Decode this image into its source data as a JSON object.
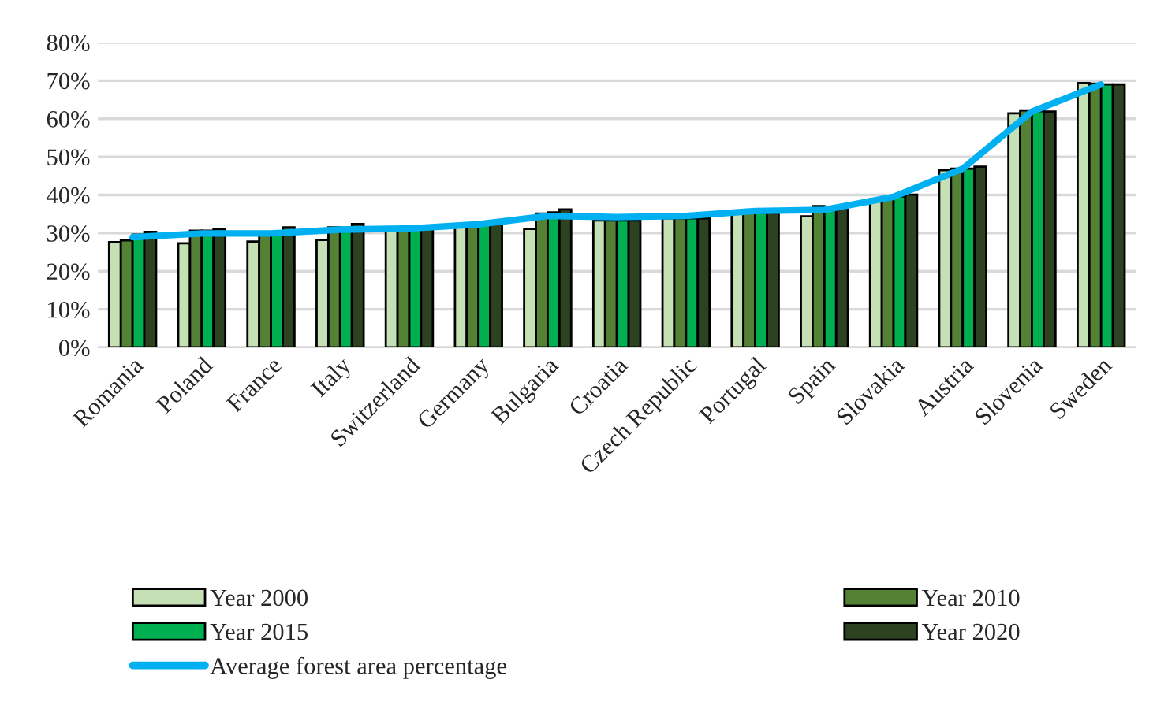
{
  "chart_data": {
    "type": "bar",
    "categories": [
      "Romania",
      "Poland",
      "France",
      "Italy",
      "Switzerland",
      "Germany",
      "Bulgaria",
      "Croatia",
      "Czech Republic",
      "Portugal",
      "Spain",
      "Slovakia",
      "Austria",
      "Slovenia",
      "Sweden"
    ],
    "series": [
      {
        "name": "Year 2000",
        "color": "#c5e0b4",
        "values": [
          27.6,
          27.3,
          27.8,
          28.2,
          30.5,
          32.0,
          31.1,
          33.3,
          33.9,
          35.3,
          34.4,
          38.9,
          46.5,
          61.4,
          69.4
        ]
      },
      {
        "name": "Year 2010",
        "color": "#548235",
        "values": [
          28.1,
          30.6,
          29.9,
          31.5,
          31.0,
          32.0,
          35.1,
          33.3,
          33.9,
          35.3,
          37.1,
          39.2,
          46.9,
          62.2,
          69.2
        ]
      },
      {
        "name": "Year 2015",
        "color": "#00b050",
        "values": [
          29.6,
          30.6,
          30.2,
          31.4,
          31.5,
          32.5,
          35.4,
          33.3,
          33.9,
          35.3,
          36.8,
          39.6,
          46.9,
          62.0,
          69.0
        ]
      },
      {
        "name": "Year 2020",
        "color": "#2d4220",
        "values": [
          30.3,
          31.1,
          31.5,
          32.4,
          31.7,
          32.7,
          36.2,
          33.3,
          33.9,
          35.3,
          36.4,
          40.1,
          47.4,
          61.9,
          69.0
        ]
      },
      {
        "name": "Average forest area percentage",
        "type": "line",
        "color": "#00b0f0",
        "values": [
          28.9,
          29.9,
          29.9,
          30.9,
          31.2,
          32.3,
          34.5,
          34.2,
          34.5,
          35.8,
          36.1,
          39.5,
          46.9,
          61.9,
          69.0
        ]
      }
    ],
    "ylim": [
      0,
      80
    ],
    "yticks": [
      {
        "value": 0,
        "label": "0%"
      },
      {
        "value": 10,
        "label": "10%"
      },
      {
        "value": 20,
        "label": "20%"
      },
      {
        "value": 30,
        "label": "30%"
      },
      {
        "value": 40,
        "label": "40%"
      },
      {
        "value": 50,
        "label": "50%"
      },
      {
        "value": 60,
        "label": "60%"
      },
      {
        "value": 70,
        "label": "70%"
      },
      {
        "value": 80,
        "label": "80%"
      }
    ],
    "grid": "y",
    "legend": "bottom"
  }
}
